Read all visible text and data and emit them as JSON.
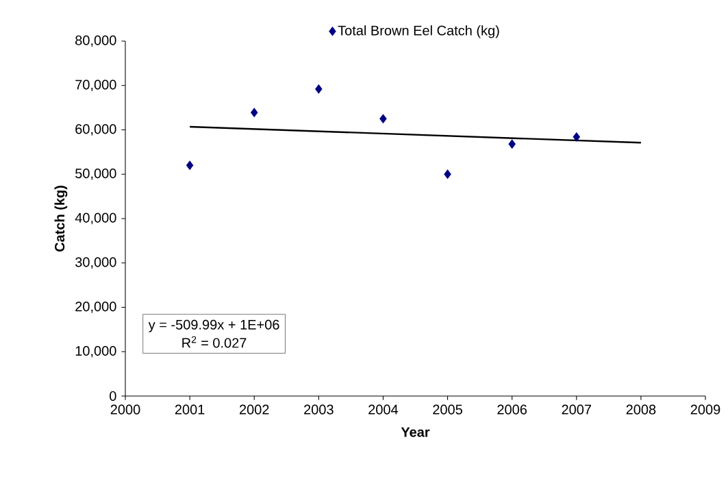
{
  "chart_data": {
    "type": "scatter",
    "xlabel": "Year",
    "ylabel": "Catch (kg)",
    "xlim": [
      2000,
      2009
    ],
    "xticks": [
      2000,
      2001,
      2002,
      2003,
      2004,
      2005,
      2006,
      2007,
      2008,
      2009
    ],
    "ylim": [
      0,
      80000
    ],
    "yticks": [
      0,
      {
        "value": 10000,
        "label": "10,000"
      },
      {
        "value": 20000,
        "label": "20,000"
      },
      {
        "value": 30000,
        "label": "30,000"
      },
      {
        "value": 40000,
        "label": "40,000"
      },
      {
        "value": 50000,
        "label": "50,000"
      },
      {
        "value": 60000,
        "label": "60,000"
      },
      {
        "value": 70000,
        "label": "70,000"
      },
      {
        "value": 80000,
        "label": "80,000"
      }
    ],
    "series": [
      {
        "name": "Total Brown Eel Catch (kg)",
        "color": "#000080",
        "marker": "diamond",
        "x": [
          2001,
          2002,
          2003,
          2004,
          2005,
          2006,
          2007
        ],
        "values": [
          52000,
          63900,
          69200,
          62500,
          50000,
          56800,
          58400
        ]
      },
      {
        "type": "line",
        "color": "#000000",
        "marker": "none",
        "line_style": "solid",
        "x": [
          2001,
          2008
        ],
        "values": [
          60700,
          57100
        ]
      }
    ],
    "annotations": [
      "y = -509.99x + 1E+06",
      "R$^{2}$ = 0.027"
    ],
    "grid": false,
    "legend": "top"
  }
}
